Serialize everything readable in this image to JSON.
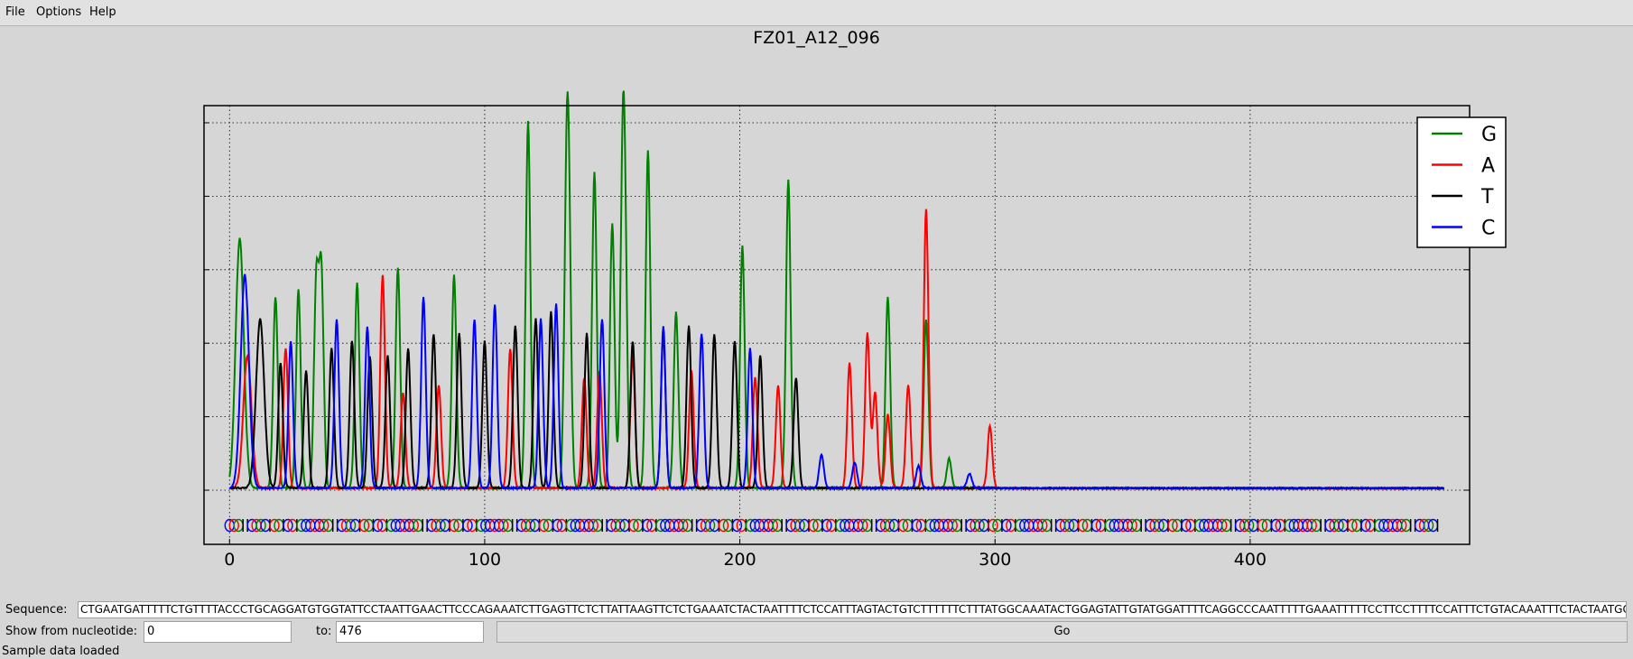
{
  "menu": {
    "file": "File",
    "options": "Options",
    "help": "Help"
  },
  "title": "FZ01_A12_096",
  "legend": [
    {
      "label": "G",
      "color": "#008000"
    },
    {
      "label": "A",
      "color": "#ff0000"
    },
    {
      "label": "T",
      "color": "#000000"
    },
    {
      "label": "C",
      "color": "#0000ff"
    }
  ],
  "chart_data": {
    "type": "line",
    "title": "FZ01_A12_096",
    "xlabel": "",
    "ylabel": "",
    "x_ticks": [
      "0",
      "100",
      "200",
      "300",
      "400"
    ],
    "xlim": [
      -10,
      486
    ],
    "ylim": [
      0,
      5
    ],
    "grid": true,
    "legend_position": "top-right",
    "series": [
      {
        "name": "G",
        "color": "#008000",
        "peaks": [
          [
            4,
            3.4
          ],
          [
            18,
            2.6
          ],
          [
            27,
            2.7
          ],
          [
            34,
            2.8
          ],
          [
            36,
            2.9
          ],
          [
            50,
            2.8
          ],
          [
            66,
            3.0
          ],
          [
            88,
            2.9
          ],
          [
            117,
            5.0
          ],
          [
            132,
            3.2
          ],
          [
            133,
            3.1
          ],
          [
            143,
            4.3
          ],
          [
            150,
            3.6
          ],
          [
            154,
            3.6
          ],
          [
            155,
            2.7
          ],
          [
            164,
            4.6
          ],
          [
            175,
            2.4
          ],
          [
            201,
            3.3
          ],
          [
            219,
            4.2
          ],
          [
            258,
            2.6
          ],
          [
            273,
            2.3
          ],
          [
            282,
            0.4
          ]
        ]
      },
      {
        "name": "A",
        "color": "#ff0000",
        "peaks": [
          [
            7,
            1.8
          ],
          [
            22,
            1.9
          ],
          [
            60,
            2.9
          ],
          [
            68,
            1.3
          ],
          [
            82,
            1.4
          ],
          [
            110,
            1.9
          ],
          [
            139,
            1.5
          ],
          [
            145,
            1.6
          ],
          [
            158,
            1.8
          ],
          [
            181,
            1.6
          ],
          [
            206,
            1.5
          ],
          [
            215,
            1.4
          ],
          [
            243,
            1.7
          ],
          [
            250,
            2.1
          ],
          [
            253,
            1.3
          ],
          [
            258,
            1.0
          ],
          [
            266,
            1.4
          ],
          [
            273,
            3.8
          ],
          [
            298,
            0.85
          ]
        ]
      },
      {
        "name": "T",
        "color": "#000000",
        "peaks": [
          [
            12,
            2.3
          ],
          [
            20,
            1.7
          ],
          [
            30,
            1.6
          ],
          [
            40,
            1.9
          ],
          [
            48,
            2.0
          ],
          [
            55,
            1.8
          ],
          [
            62,
            1.8
          ],
          [
            70,
            1.9
          ],
          [
            80,
            2.1
          ],
          [
            90,
            2.1
          ],
          [
            100,
            2.0
          ],
          [
            112,
            2.2
          ],
          [
            120,
            2.3
          ],
          [
            126,
            2.4
          ],
          [
            140,
            2.1
          ],
          [
            158,
            2.0
          ],
          [
            170,
            2.1
          ],
          [
            180,
            2.2
          ],
          [
            190,
            2.1
          ],
          [
            198,
            2.0
          ],
          [
            208,
            1.8
          ],
          [
            222,
            1.5
          ]
        ]
      },
      {
        "name": "C",
        "color": "#0000ff",
        "peaks": [
          [
            6,
            2.9
          ],
          [
            24,
            2.0
          ],
          [
            42,
            2.3
          ],
          [
            54,
            2.2
          ],
          [
            76,
            2.6
          ],
          [
            96,
            2.3
          ],
          [
            104,
            2.5
          ],
          [
            122,
            2.3
          ],
          [
            128,
            2.5
          ],
          [
            146,
            2.3
          ],
          [
            170,
            2.2
          ],
          [
            185,
            2.1
          ],
          [
            204,
            1.9
          ],
          [
            232,
            0.45
          ],
          [
            245,
            0.35
          ],
          [
            270,
            0.3
          ],
          [
            290,
            0.2
          ]
        ]
      }
    ],
    "base_calls_track": true
  },
  "controls": {
    "sequence_label": "Sequence:",
    "sequence_value": "CTGAATGATTTTTCTGTTTTACCCTGCAGGATGTGGTATTCCTAATTGAACTTCCCAGAAATCTTGAGTTCTCTTATTAAGTTCTCTGAAATCTACTAATTTTCTCCATTTAGTACTGTCTTTTTTCTTTATGGCAAATACTGGAGTATTGTATGGATTTTCAGGCCCAATTTTTGAAATTTTTCCTTCCTTTTCCATTTCTGTACAAATTTCTACTAATGCT",
    "from_label": "Show from nucleotide:",
    "from_value": "0",
    "to_label": "to:",
    "to_value": "476",
    "go_label": "Go"
  },
  "status": "Sample data loaded"
}
